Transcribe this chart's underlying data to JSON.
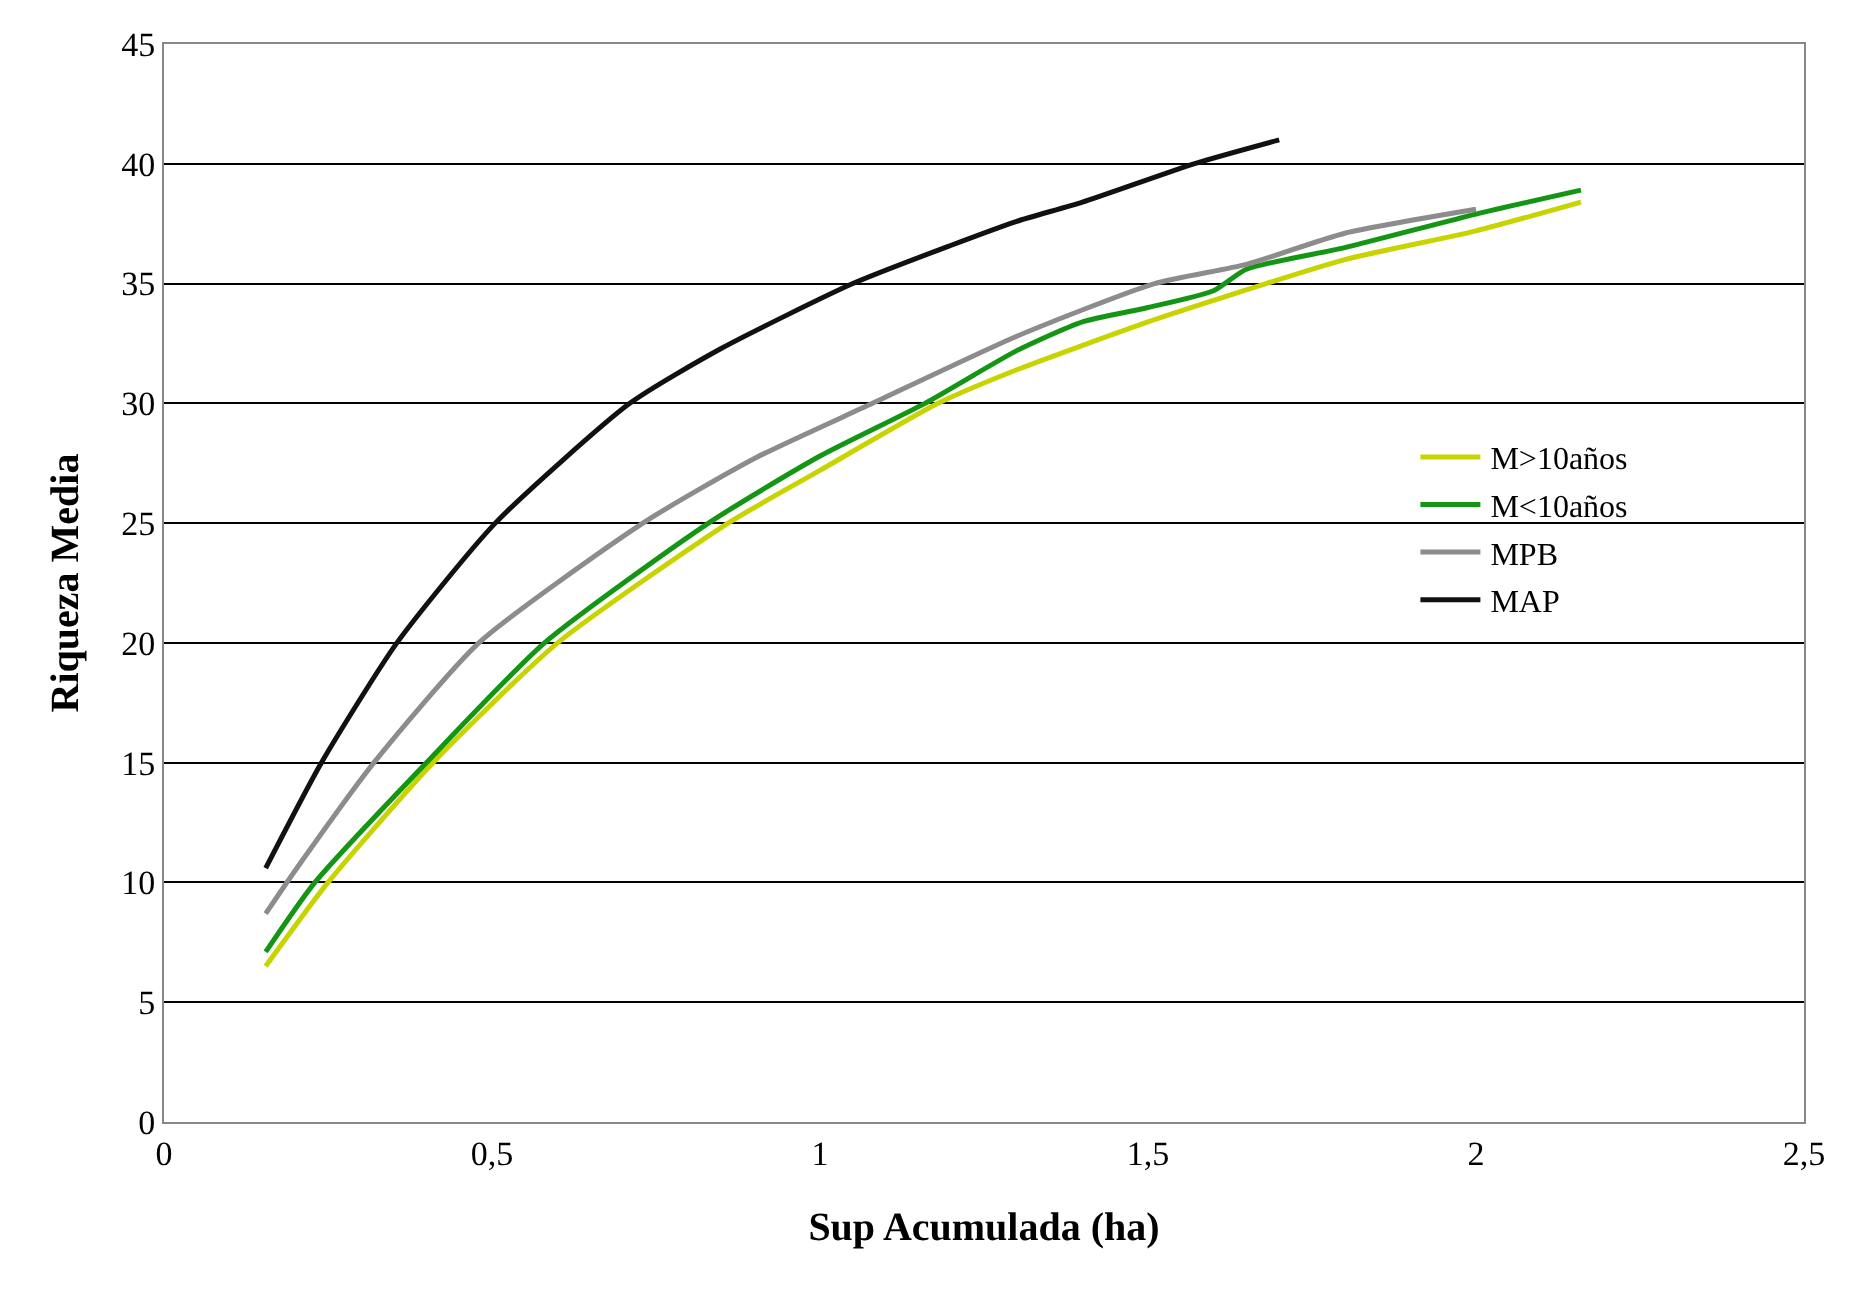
{
  "chart_data": {
    "type": "line",
    "xlabel": "Sup Acumulada (ha)",
    "ylabel": "Riqueza Media",
    "xlim": [
      0,
      2.5
    ],
    "xticks": [
      0,
      {
        "value": 0.5,
        "label": "0,5"
      },
      1,
      {
        "value": 1.5,
        "label": "1,5"
      },
      2,
      {
        "value": 2.5,
        "label": "2,5"
      }
    ],
    "ylim": [
      0,
      45
    ],
    "yticks": [
      0,
      5,
      10,
      15,
      20,
      25,
      30,
      35,
      40,
      45
    ],
    "grid": "y",
    "legend": "right",
    "marker": "none",
    "line_style": "solid",
    "series": [
      {
        "name": "M>10años",
        "color": "#c8d400",
        "x": [
          0.155,
          0.25,
          0.41,
          0.6,
          0.86,
          1.0,
          1.18,
          1.3,
          1.5,
          1.6,
          1.68,
          1.8,
          2.0,
          2.16
        ],
        "values": [
          6.5,
          10,
          15,
          20,
          25,
          27.2,
          30,
          31.4,
          33.4,
          34.3,
          35,
          36,
          37.2,
          38.4
        ]
      },
      {
        "name": "M<10años",
        "color": "#149614",
        "x": [
          0.155,
          0.23,
          0.4,
          0.58,
          0.83,
          1.0,
          1.16,
          1.3,
          1.4,
          1.5,
          1.6,
          1.65,
          1.8,
          2.0,
          2.16
        ],
        "values": [
          7.1,
          10,
          15,
          20,
          25,
          27.8,
          30,
          32.2,
          33.4,
          34.0,
          34.7,
          35.6,
          36.5,
          37.9,
          38.9
        ]
      },
      {
        "name": "MPB",
        "color": "#8c8c8c",
        "x": [
          0.155,
          0.2,
          0.32,
          0.48,
          0.73,
          0.9,
          1.08,
          1.3,
          1.51,
          1.65,
          1.8,
          2.0
        ],
        "values": [
          8.7,
          10.5,
          15,
          20,
          25,
          27.7,
          30,
          32.8,
          35,
          35.8,
          37.1,
          38.1
        ]
      },
      {
        "name": "MAP",
        "color": "#111111",
        "x": [
          0.155,
          0.24,
          0.355,
          0.505,
          0.71,
          0.85,
          1.05,
          1.2,
          1.3,
          1.4,
          1.57,
          1.7
        ],
        "values": [
          10.6,
          15,
          20,
          25,
          30,
          32.3,
          35,
          36.6,
          37.6,
          38.4,
          40,
          41
        ]
      }
    ]
  }
}
